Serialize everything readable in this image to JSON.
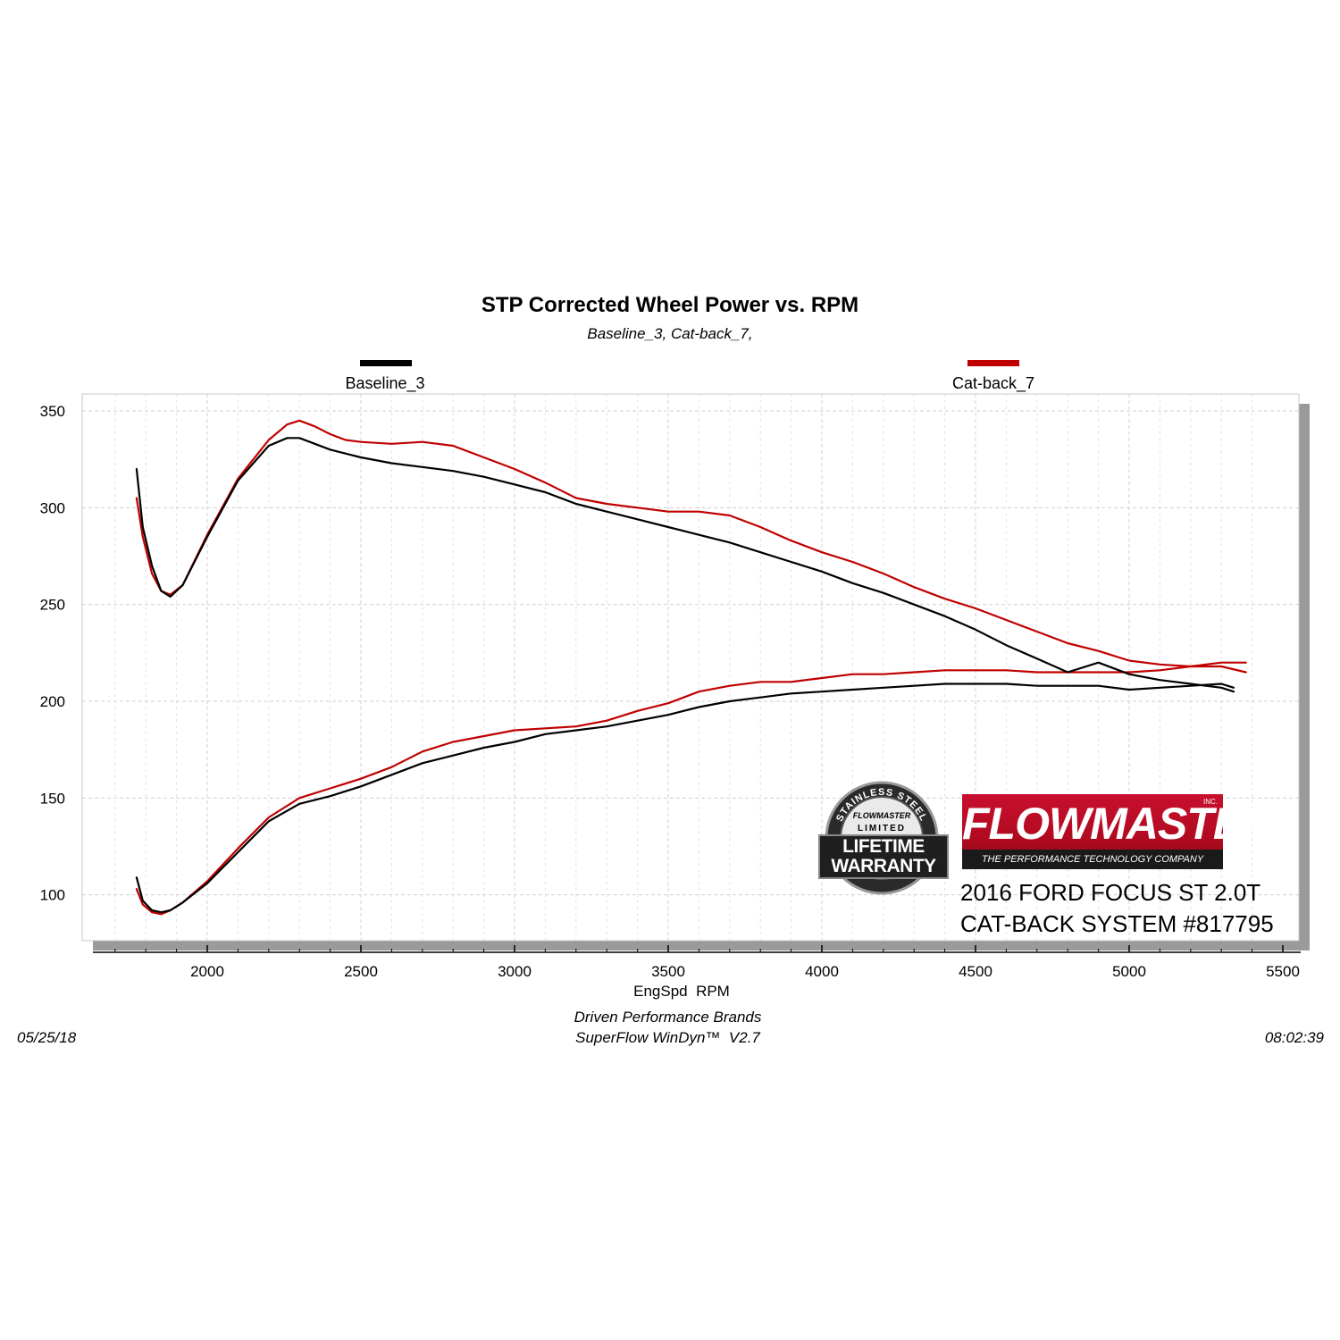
{
  "chart_data": {
    "type": "line",
    "title": "STP Corrected Wheel Power vs. RPM",
    "subtitle": "Baseline_3, Cat-back_7,",
    "xlabel": "EngSpd  RPM",
    "ylabel": "",
    "xlim": [
      1620,
      5500
    ],
    "ylim": [
      80,
      358
    ],
    "x_ticks": [
      2000,
      2500,
      3000,
      3500,
      4000,
      4500,
      5000,
      5500
    ],
    "y_ticks": [
      100,
      150,
      200,
      250,
      300,
      350
    ],
    "grid": true,
    "legend_position": "top",
    "series": [
      {
        "name": "Baseline_3",
        "color": "#000000",
        "curves": [
          {
            "x": [
              1770,
              1790,
              1820,
              1850,
              1880,
              1920,
              2000,
              2100,
              2200,
              2260,
              2300,
              2350,
              2400,
              2450,
              2500,
              2600,
              2700,
              2800,
              2900,
              3000,
              3100,
              3200,
              3300,
              3400,
              3500,
              3600,
              3700,
              3800,
              3900,
              4000,
              4100,
              4200,
              4300,
              4400,
              4500,
              4600,
              4700,
              4800,
              4900,
              5000,
              5100,
              5200,
              5300,
              5340
            ],
            "y": [
              320,
              290,
              270,
              257,
              254,
              260,
              285,
              314,
              332,
              336,
              336,
              333,
              330,
              328,
              326,
              323,
              321,
              319,
              316,
              312,
              308,
              302,
              298,
              294,
              290,
              286,
              282,
              277,
              272,
              267,
              261,
              256,
              250,
              244,
              237,
              229,
              222,
              215,
              220,
              214,
              211,
              209,
              207,
              205
            ]
          },
          {
            "x": [
              1770,
              1790,
              1820,
              1850,
              1880,
              1920,
              2000,
              2100,
              2200,
              2300,
              2400,
              2500,
              2600,
              2700,
              2800,
              2900,
              3000,
              3100,
              3200,
              3300,
              3400,
              3500,
              3600,
              3700,
              3800,
              3900,
              4000,
              4100,
              4200,
              4300,
              4400,
              4500,
              4600,
              4700,
              4800,
              4900,
              5000,
              5100,
              5200,
              5300,
              5340
            ],
            "y": [
              109,
              97,
              92,
              91,
              92,
              96,
              106,
              122,
              138,
              147,
              151,
              156,
              162,
              168,
              172,
              176,
              179,
              183,
              185,
              187,
              190,
              193,
              197,
              200,
              202,
              204,
              205,
              206,
              207,
              208,
              209,
              209,
              209,
              208,
              208,
              208,
              206,
              207,
              208,
              209,
              207
            ]
          }
        ]
      },
      {
        "name": "Cat-back_7",
        "color": "#c00000",
        "curves": [
          {
            "x": [
              1770,
              1790,
              1820,
              1850,
              1880,
              1920,
              2000,
              2100,
              2200,
              2260,
              2300,
              2350,
              2400,
              2450,
              2500,
              2600,
              2700,
              2800,
              2900,
              3000,
              3100,
              3200,
              3300,
              3400,
              3500,
              3600,
              3700,
              3800,
              3900,
              4000,
              4100,
              4200,
              4300,
              4400,
              4500,
              4600,
              4700,
              4800,
              4900,
              5000,
              5100,
              5200,
              5300,
              5380
            ],
            "y": [
              305,
              285,
              266,
              257,
              255,
              260,
              286,
              315,
              335,
              343,
              345,
              342,
              338,
              335,
              334,
              333,
              334,
              332,
              326,
              320,
              313,
              305,
              302,
              300,
              298,
              298,
              296,
              290,
              283,
              277,
              272,
              266,
              259,
              253,
              248,
              242,
              236,
              230,
              226,
              221,
              219,
              218,
              218,
              215
            ]
          },
          {
            "x": [
              1770,
              1790,
              1820,
              1850,
              1880,
              1920,
              2000,
              2100,
              2200,
              2300,
              2400,
              2500,
              2600,
              2700,
              2800,
              2900,
              3000,
              3100,
              3200,
              3300,
              3400,
              3500,
              3600,
              3700,
              3800,
              3900,
              4000,
              4100,
              4200,
              4300,
              4400,
              4500,
              4600,
              4700,
              4800,
              4900,
              5000,
              5100,
              5200,
              5300,
              5380
            ],
            "y": [
              103,
              95,
              91,
              90,
              92,
              96,
              107,
              124,
              140,
              150,
              155,
              160,
              166,
              174,
              179,
              182,
              185,
              186,
              187,
              190,
              195,
              199,
              205,
              208,
              210,
              210,
              212,
              214,
              214,
              215,
              216,
              216,
              216,
              215,
              215,
              215,
              215,
              216,
              218,
              220,
              220
            ]
          }
        ]
      }
    ]
  },
  "footer": {
    "left_date": "05/25/18",
    "center_line1": "Driven Performance Brands",
    "center_line2": "SuperFlow WinDyn™  V2.7",
    "right_time": "08:02:39"
  },
  "branding": {
    "logo_text": "FLOWMASTER",
    "logo_inc": "INC.",
    "logo_tagline": "THE PERFORMANCE TECHNOLOGY COMPANY",
    "caption_line1": "2016 FORD FOCUS ST 2.0T",
    "caption_line2": "CAT-BACK SYSTEM #817795",
    "badge_ring_text": "STAINLESS STEEL",
    "badge_brand": "FLOWMASTER",
    "badge_limited": "LIMITED",
    "badge_line1": "LIFETIME",
    "badge_line2": "WARRANTY"
  }
}
